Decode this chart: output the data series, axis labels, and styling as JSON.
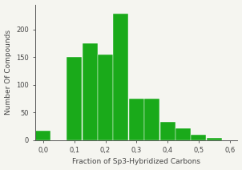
{
  "bin_centers": [
    0.0,
    0.05,
    0.1,
    0.15,
    0.2,
    0.25,
    0.3,
    0.35,
    0.4,
    0.45,
    0.5,
    0.55
  ],
  "bar_heights": [
    17,
    0,
    150,
    175,
    155,
    228,
    75,
    75,
    33,
    21,
    10,
    3
  ],
  "bin_width": 0.05,
  "bar_color": "#1aaa1a",
  "bar_edgecolor": "#ffffff",
  "xlabel": "Fraction of Sp3-Hybridized Carbons",
  "ylabel": "Number Of Compounds",
  "xlim": [
    -0.025,
    0.625
  ],
  "ylim": [
    0,
    245
  ],
  "xticks": [
    0.0,
    0.1,
    0.2,
    0.3,
    0.4,
    0.5,
    0.6
  ],
  "xtick_labels": [
    "0,0",
    "0,1",
    "0,2",
    "0,3",
    "0,4",
    "0,5",
    "0,6"
  ],
  "yticks": [
    0,
    50,
    100,
    150,
    200
  ],
  "xlabel_fontsize": 6.5,
  "ylabel_fontsize": 6.5,
  "tick_fontsize": 6,
  "background_color": "#f5f5f0"
}
